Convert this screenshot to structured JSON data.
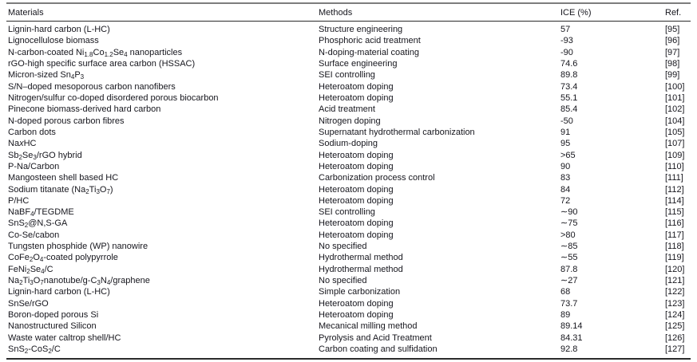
{
  "colors": {
    "background": "#ffffff",
    "text": "#16161d",
    "rule_top": "#7d7d7d",
    "rule_dark": "#2b2b2b"
  },
  "table": {
    "columns": [
      "Materials",
      "Methods",
      "ICE (%)",
      "Ref."
    ],
    "rows": [
      {
        "material": "Lignin-hard carbon (L-HC)",
        "method": "Structure engineering",
        "ice": "57",
        "ref": "[95]"
      },
      {
        "material": "Lignocellulose biomass",
        "method": "Phosphoric acid treatment",
        "ice": "-93",
        "ref": "[96]"
      },
      {
        "material": "N-carbon-coated Ni~1.8~Co~1.2~Se~4~ nanoparticles",
        "method": "N-doping-material coating",
        "ice": "-90",
        "ref": "[97]"
      },
      {
        "material": "rGO-high specific surface area carbon (HSSAC)",
        "method": "Surface engineering",
        "ice": "74.6",
        "ref": "[98]"
      },
      {
        "material": "Micron-sized Sn~4~P~3~",
        "method": "SEI controlling",
        "ice": "89.8",
        "ref": "[99]"
      },
      {
        "material": "S/N–doped mesoporous carbon nanofibers",
        "method": "Heteroatom doping",
        "ice": "73.4",
        "ref": "[100]"
      },
      {
        "material": "Nitrogen/sulfur co-doped disordered porous biocarbon",
        "method": "Heteroatom doping",
        "ice": "55.1",
        "ref": "[101]"
      },
      {
        "material": "Pinecone biomass-derived hard carbon",
        "method": "Acid treatment",
        "ice": "85.4",
        "ref": "[102]"
      },
      {
        "material": "N-doped porous carbon fibres",
        "method": "Nitrogen doping",
        "ice": "-50",
        "ref": "[104]"
      },
      {
        "material": "Carbon dots",
        "method": "Supernatant hydrothermal carbonization",
        "ice": "91",
        "ref": "[105]"
      },
      {
        "material": "Na*x*HC",
        "method": "Sodium-doping",
        "ice": "95",
        "ref": "[107]"
      },
      {
        "material": "Sb~2~Se~3~/rGO hybrid",
        "method": "Heteroatom doping",
        "ice": ">65",
        "ref": "[109]"
      },
      {
        "material": "P-Na/Carbon",
        "method": "Heteroatom doping",
        "ice": "90",
        "ref": "[110]"
      },
      {
        "material": "Mangosteen shell based HC",
        "method": "Carbonization process control",
        "ice": "83",
        "ref": "[111]"
      },
      {
        "material": "Sodium titanate (Na~2~Ti~3~O~7~)",
        "method": "Heteroatom doping",
        "ice": "84",
        "ref": "[112]"
      },
      {
        "material": "P/HC",
        "method": "Heteroatom doping",
        "ice": "72",
        "ref": "[114]"
      },
      {
        "material": "NaBF~4~/TEGDME",
        "method": "SEI controlling",
        "ice": "∼90",
        "ref": "[115]"
      },
      {
        "material": "SnS~2~@N,S-GA",
        "method": "Heteroatom doping",
        "ice": "∼75",
        "ref": "[116]"
      },
      {
        "material": "Co-Se/cabon",
        "method": "Heteroatom doping",
        "ice": ">80",
        "ref": "[117]"
      },
      {
        "material": "Tungsten phosphide (WP) nanowire",
        "method": "No specified",
        "ice": "∼85",
        "ref": "[118]"
      },
      {
        "material": "CoFe~2~O~4~-coated polypyrrole",
        "method": "Hydrothermal method",
        "ice": "∼55",
        "ref": "[119]"
      },
      {
        "material": "FeNi~2~Se~4~/C",
        "method": "Hydrothermal method",
        "ice": "87.8",
        "ref": "[120]"
      },
      {
        "material": "Na~2~Ti~3~O~7~nanotube/g-C~3~N~4~/graphene",
        "method": "No specified",
        "ice": "∼27",
        "ref": "[121]"
      },
      {
        "material": "Lignin-hard carbon (L-HC)",
        "method": "Simple carbonization",
        "ice": "68",
        "ref": "[122]"
      },
      {
        "material": "SnSe/rGO",
        "method": "Heteroatom doping",
        "ice": "73.7",
        "ref": "[123]"
      },
      {
        "material": "Boron-doped porous Si",
        "method": "Heteroatom doping",
        "ice": "89",
        "ref": "[124]"
      },
      {
        "material": "Nanostructured Silicon",
        "method": "Mecanical milling method",
        "ice": "89.14",
        "ref": "[125]"
      },
      {
        "material": "Waste water caltrop shell/HC",
        "method": "Pyrolysis and Acid Treatment",
        "ice": "84.31",
        "ref": "[126]"
      },
      {
        "material": "SnS~2~-CoS~2~/C",
        "method": "Carbon coating and sulfidation",
        "ice": "92.8",
        "ref": "[127]"
      }
    ]
  }
}
